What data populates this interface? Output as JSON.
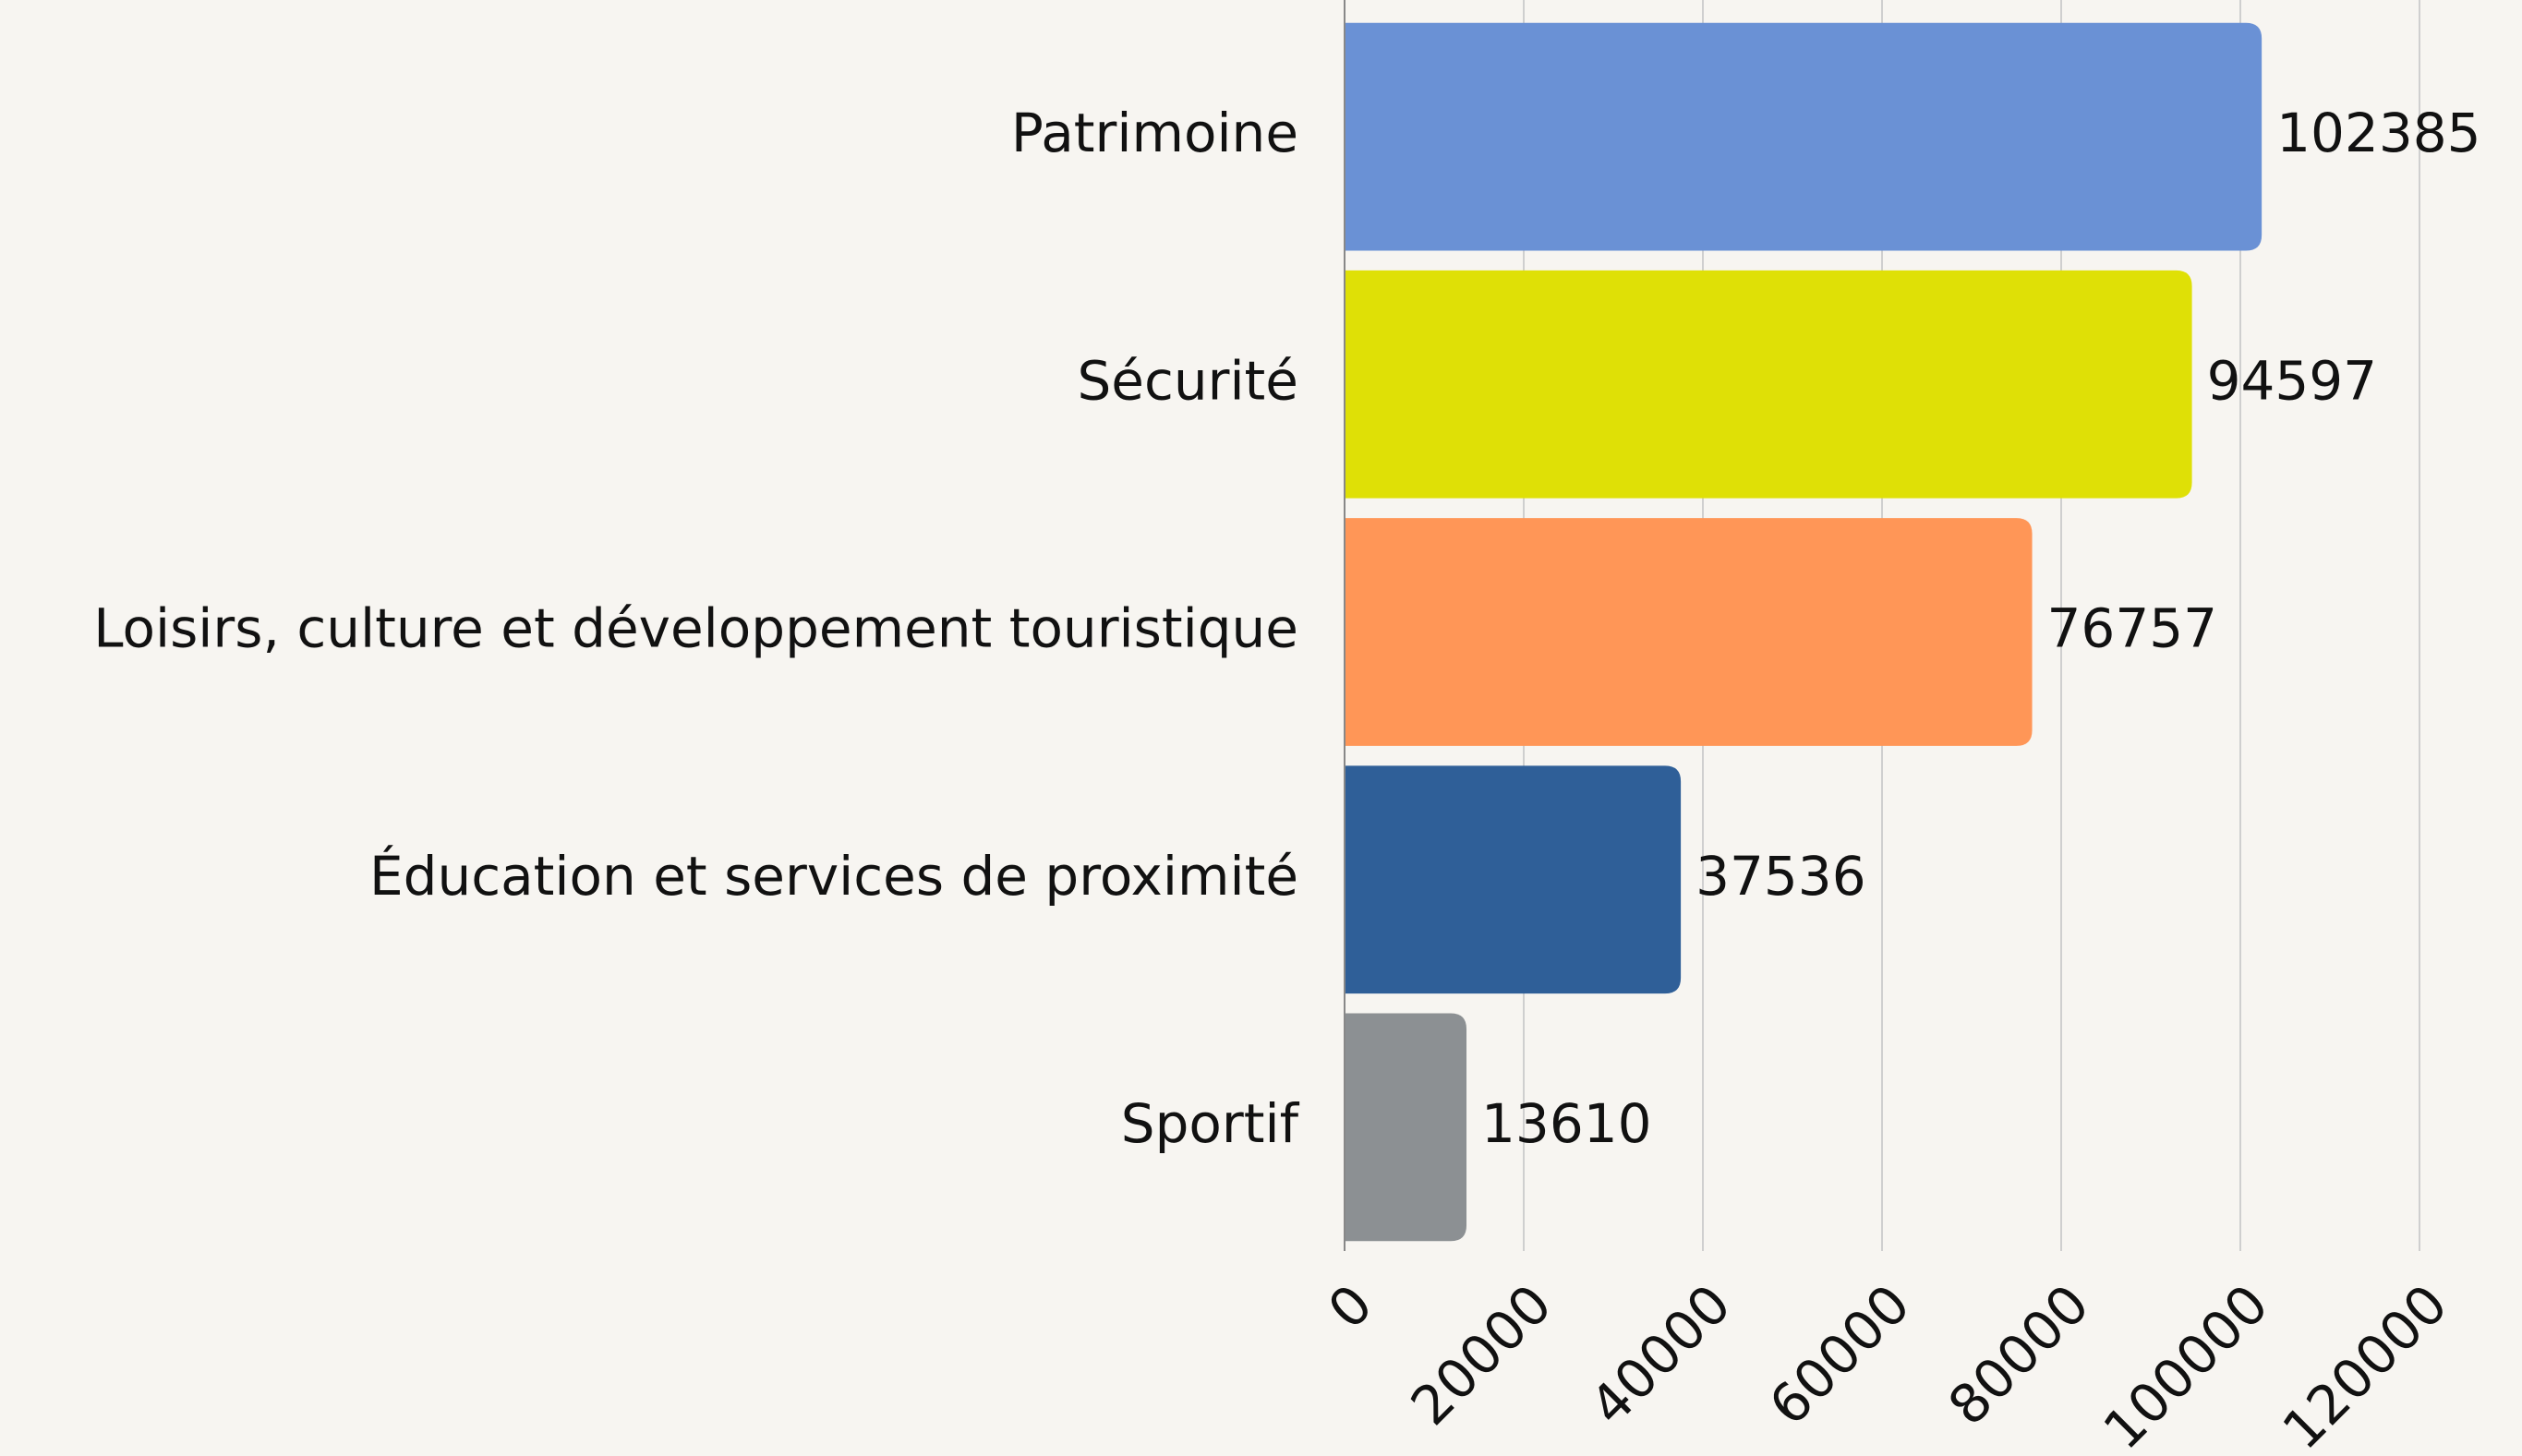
{
  "chart_data": {
    "type": "bar",
    "orientation": "horizontal",
    "categories": [
      "Patrimoine",
      "Sécurité",
      "Loisirs, culture et développement touristique",
      "Éducation et services de proximité",
      "Sportif"
    ],
    "values": [
      102385,
      94597,
      76757,
      37536,
      13610
    ],
    "colors": [
      "#6a91d5",
      "#dfe006",
      "#ff9657",
      "#2f5f98",
      "#8c9093"
    ],
    "xlim": [
      0,
      120000
    ],
    "xticks": [
      0,
      20000,
      40000,
      60000,
      80000,
      100000,
      120000
    ],
    "grid": true
  }
}
